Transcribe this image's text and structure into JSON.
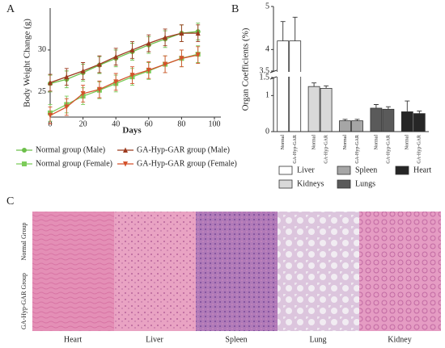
{
  "chart_data": [
    {
      "type": "line",
      "panel": "A",
      "xlabel": "Days",
      "ylabel": "Body Weight Change (g)",
      "x": [
        0,
        10,
        20,
        30,
        40,
        50,
        60,
        70,
        80,
        90
      ],
      "xlim": [
        0,
        100
      ],
      "xticks": [
        0,
        20,
        40,
        60,
        80,
        100
      ],
      "ylim": [
        22,
        35
      ],
      "yticks": [
        25,
        30
      ],
      "series": [
        {
          "name": "Normal group (Male)",
          "color": "#6cbf4a",
          "marker": "circle",
          "values": [
            26,
            26.5,
            27.3,
            28.2,
            29,
            29.8,
            30.6,
            31.3,
            32,
            32.2
          ],
          "errors": [
            1,
            1,
            1,
            1,
            1,
            1,
            1,
            1,
            1,
            1
          ]
        },
        {
          "name": "GA-Hyp-GAR group (Male)",
          "color": "#9c3a1e",
          "marker": "triangle-up",
          "values": [
            26.1,
            26.8,
            27.5,
            28.3,
            29.2,
            30,
            30.8,
            31.5,
            32,
            32
          ],
          "errors": [
            1,
            1,
            1,
            1,
            1,
            1,
            1,
            1,
            1,
            1
          ]
        },
        {
          "name": "Normal group (Female)",
          "color": "#7ccc5a",
          "marker": "square",
          "values": [
            22.5,
            23.5,
            24.5,
            25.2,
            26,
            26.8,
            27.5,
            28.3,
            29,
            29.5
          ],
          "errors": [
            1,
            1,
            1,
            1,
            1,
            1,
            1,
            1,
            1,
            1
          ]
        },
        {
          "name": "GA-Hyp-GAR group (Female)",
          "color": "#d4522b",
          "marker": "triangle-down",
          "values": [
            22.2,
            23.2,
            24.8,
            25.3,
            26.2,
            27,
            27.6,
            28.3,
            29,
            29.4
          ],
          "errors": [
            1,
            1,
            1,
            1,
            1,
            1,
            1,
            1,
            1,
            1
          ]
        }
      ]
    },
    {
      "type": "bar",
      "panel": "B",
      "ylabel": "Organ Coefficients (%)",
      "categories": [
        "Liver",
        "Kidneys",
        "Spleen",
        "Lungs",
        "Heart"
      ],
      "colors": [
        "#ffffff",
        "#d9d9d9",
        "#a6a6a6",
        "#5a5a5a",
        "#262626"
      ],
      "ylim": [
        0,
        5
      ],
      "ybreak": [
        1.5,
        3.5
      ],
      "yticks": [
        0,
        1,
        1.5,
        3.5,
        4,
        5
      ],
      "series": [
        {
          "name": "Normal",
          "values": [
            4.2,
            1.25,
            0.3,
            0.65,
            0.55
          ],
          "errors": [
            0.45,
            0.1,
            0.04,
            0.1,
            0.3
          ]
        },
        {
          "name": "GA-Hyp-GAR",
          "values": [
            4.2,
            1.2,
            0.3,
            0.62,
            0.5
          ],
          "errors": [
            0.55,
            0.07,
            0.04,
            0.07,
            0.07
          ]
        }
      ]
    }
  ],
  "panel_c": {
    "label": "C",
    "rows": [
      "Normal Group",
      "GA-Hyp-GAR Group"
    ],
    "columns": [
      "Heart",
      "Liver",
      "Spleen",
      "Lung",
      "Kidney"
    ]
  }
}
